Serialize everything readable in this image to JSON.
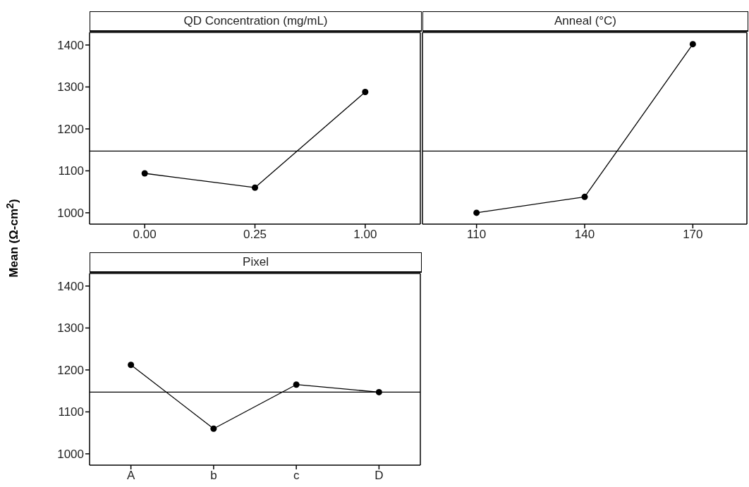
{
  "chart_data": [
    {
      "type": "line",
      "title": "QD Concentration (mg/mL)",
      "ylabel": "Mean (Ω-cm$^{2}$)",
      "categories": [
        "0.00",
        "0.25",
        "1.00"
      ],
      "series": [
        {
          "color": "#000000",
          "values": [
            1094,
            1060,
            1288
          ]
        }
      ],
      "ylim": [
        973,
        1430
      ],
      "yticks": [
        1000,
        1100,
        1200,
        1300,
        1400
      ],
      "ref_lines": [
        {
          "axis": "y",
          "value": 1147,
          "color": "#000000"
        }
      ],
      "marker": "circle",
      "line_style": "solid",
      "grid": false,
      "legend": false
    },
    {
      "type": "line",
      "title": "Anneal (°C)",
      "categories": [
        "110",
        "140",
        "170"
      ],
      "series": [
        {
          "color": "#000000",
          "values": [
            1000,
            1038,
            1402
          ]
        }
      ],
      "ylim": [
        973,
        1430
      ],
      "yticks": [
        1000,
        1100,
        1200,
        1300,
        1400
      ],
      "tick_labels": "x",
      "ref_lines": [
        {
          "axis": "y",
          "value": 1147,
          "color": "#000000"
        }
      ],
      "marker": "circle",
      "line_style": "solid",
      "grid": false,
      "legend": false
    },
    {
      "type": "line",
      "title": "Pixel",
      "categories": [
        "A",
        "b",
        "c",
        "D"
      ],
      "series": [
        {
          "color": "#000000",
          "values": [
            1212,
            1060,
            1165,
            1147
          ]
        }
      ],
      "ylim": [
        973,
        1430
      ],
      "yticks": [
        1000,
        1100,
        1200,
        1300,
        1400
      ],
      "ref_lines": [
        {
          "axis": "y",
          "value": 1147,
          "color": "#000000"
        }
      ],
      "marker": "circle",
      "line_style": "solid",
      "grid": false,
      "legend": false
    }
  ]
}
